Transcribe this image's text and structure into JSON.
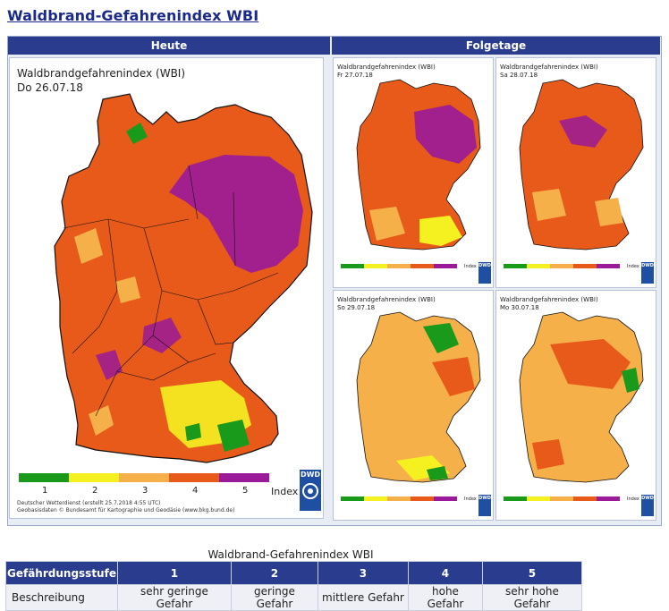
{
  "page": {
    "title": "Waldbrand-Gefahrenindex WBI"
  },
  "headers": {
    "today": "Heute",
    "following": "Folgetage"
  },
  "main_map": {
    "title": "Waldbrandgefahrenindex (WBI)",
    "date": "Do 26.07.18",
    "legend_numbers": [
      "1",
      "2",
      "3",
      "4",
      "5"
    ],
    "legend_unit": "Index",
    "credit_line1": "Deutscher Wetterdienst (erstellt 25.7.2018 4:55 UTC)",
    "credit_line2": "Geobasisdaten © Bundesamt für Kartographie und Geodäsie (www.bkg.bund.de)",
    "logo": "DWD"
  },
  "small_maps": [
    {
      "title": "Waldbrandgefahrenindex (WBI)",
      "date": "Fr 27.07.18",
      "logo": "DWD",
      "unit": "Index"
    },
    {
      "title": "Waldbrandgefahrenindex (WBI)",
      "date": "Sa 28.07.18",
      "logo": "DWD",
      "unit": "Index"
    },
    {
      "title": "Waldbrandgefahrenindex (WBI)",
      "date": "So 29.07.18",
      "logo": "DWD",
      "unit": "Index"
    },
    {
      "title": "Waldbrandgefahrenindex (WBI)",
      "date": "Mo 30.07.18",
      "logo": "DWD",
      "unit": "Index"
    }
  ],
  "legend_colors": [
    "#1a9a1a",
    "#f5f020",
    "#f5b04a",
    "#e85a1a",
    "#9a1a9a"
  ],
  "table": {
    "caption": "Waldbrand-Gefahrenindex WBI",
    "header_label": "Gefährdungsstufe",
    "levels": [
      "1",
      "2",
      "3",
      "4",
      "5"
    ],
    "row_label": "Beschreibung",
    "descriptions": [
      "sehr geringe Gefahr",
      "geringe Gefahr",
      "mittlere Gefahr",
      "hohe Gefahr",
      "sehr hohe Gefahr"
    ]
  }
}
